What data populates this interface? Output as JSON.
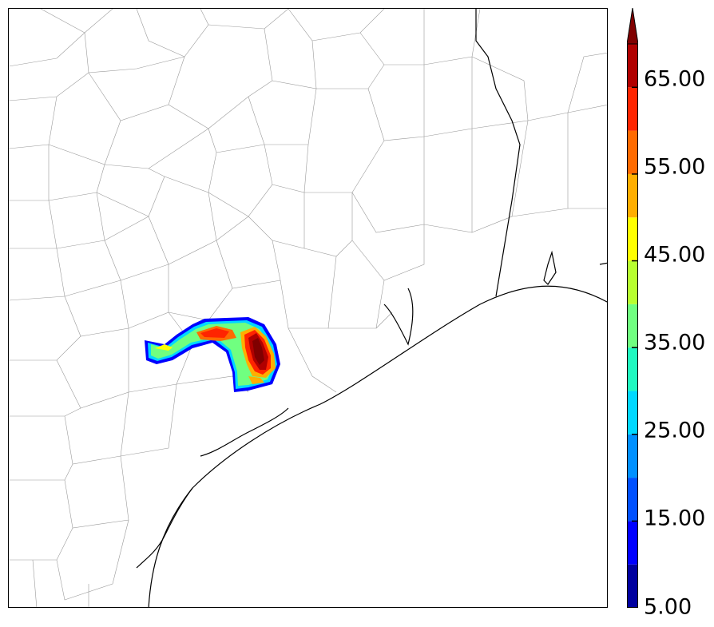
{
  "colorbar": {
    "min_label": "5.00",
    "tick_labels": [
      "15.00",
      "25.00",
      "35.00",
      "45.00",
      "55.00",
      "65.00"
    ],
    "tick_values": [
      15,
      25,
      35,
      45,
      55,
      65
    ],
    "range": [
      5,
      70
    ],
    "extend": "max",
    "levels": [
      5,
      10,
      15,
      20,
      25,
      30,
      35,
      40,
      45,
      50,
      55,
      60,
      65,
      70
    ],
    "colors": [
      "#00009f",
      "#0000ff",
      "#0050ff",
      "#0090ff",
      "#00d8ff",
      "#20f8c0",
      "#70ff80",
      "#b8ff30",
      "#ffff00",
      "#ffae00",
      "#ff6a00",
      "#ff2400",
      "#b00000",
      "#800000"
    ],
    "extend_color": "#800000"
  }
}
